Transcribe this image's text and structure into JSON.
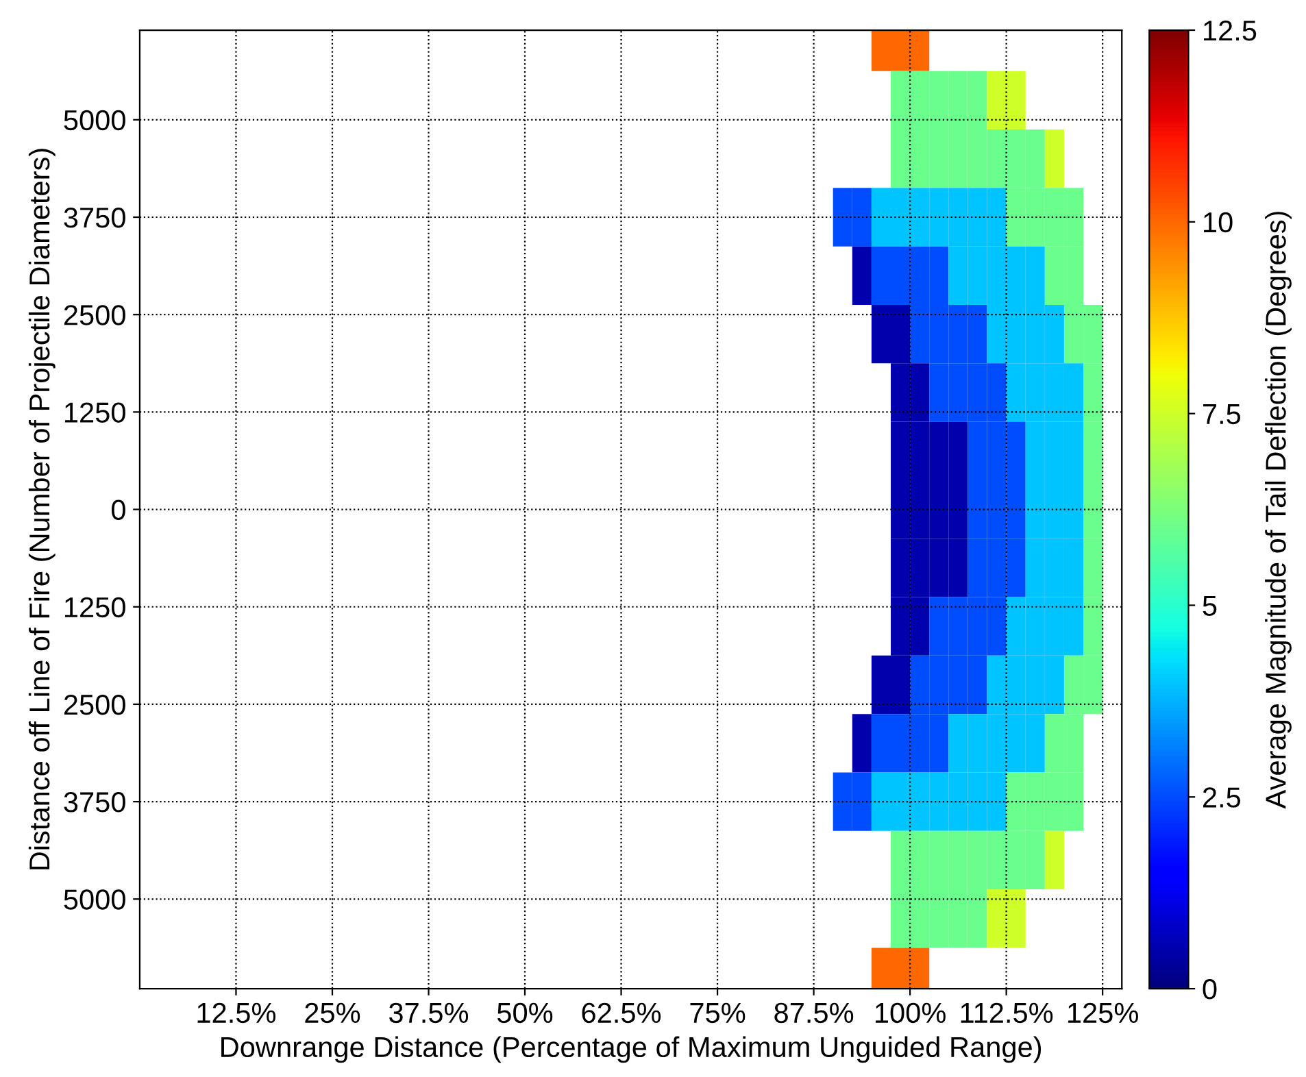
{
  "chart_data": {
    "type": "heatmap",
    "xlabel": "Downrange Distance (Percentage of Maximum Unguided Range)",
    "ylabel": "Distance off Line of Fire (Number of Projectile Diameters)",
    "clabel": "Average Magnitude of Tail Deflection (Degrees)",
    "x": [
      88.75,
      91.25,
      93.75,
      96.25,
      98.75,
      101.25,
      103.75,
      106.25,
      108.75,
      111.25,
      113.75,
      116.25,
      118.75,
      121.25,
      123.75,
      126.25
    ],
    "y": [
      -6000,
      -5250,
      -4500,
      -3750,
      -3000,
      -2250,
      -1500,
      -750,
      0,
      750,
      1500,
      2250,
      3000,
      3750,
      4500,
      5250,
      6000
    ],
    "cells": [
      [
        null,
        null,
        null,
        10,
        10,
        10,
        null,
        null,
        null,
        null,
        null,
        null,
        null,
        null,
        null,
        null
      ],
      [
        null,
        null,
        null,
        null,
        6,
        6,
        6,
        6,
        6,
        7.5,
        7.5,
        null,
        null,
        null,
        null,
        null
      ],
      [
        null,
        null,
        null,
        null,
        6,
        6,
        6,
        6,
        6,
        6,
        6,
        6,
        7.5,
        null,
        null,
        null
      ],
      [
        null,
        2.5,
        2.5,
        4,
        4,
        4,
        4,
        4,
        4,
        4,
        6,
        6,
        6,
        6,
        null,
        null
      ],
      [
        null,
        null,
        0.5,
        2.5,
        2.5,
        2.5,
        2.5,
        4,
        4,
        4,
        4,
        4,
        6,
        6,
        null,
        null
      ],
      [
        null,
        null,
        null,
        0.5,
        0.5,
        2.5,
        2.5,
        2.5,
        2.5,
        4,
        4,
        4,
        4,
        6,
        6,
        null
      ],
      [
        null,
        null,
        null,
        null,
        0.5,
        0.5,
        2.5,
        2.5,
        2.5,
        2.5,
        4,
        4,
        4,
        4,
        6,
        null
      ],
      [
        null,
        null,
        null,
        null,
        0.5,
        0.5,
        0.5,
        0.5,
        2.5,
        2.5,
        2.5,
        4,
        4,
        4,
        6,
        null
      ],
      [
        null,
        null,
        null,
        null,
        0.5,
        0.5,
        0.5,
        0.5,
        2.5,
        2.5,
        2.5,
        4,
        4,
        4,
        6,
        null
      ],
      [
        null,
        null,
        null,
        null,
        0.5,
        0.5,
        0.5,
        0.5,
        2.5,
        2.5,
        2.5,
        4,
        4,
        4,
        6,
        null
      ],
      [
        null,
        null,
        null,
        null,
        0.5,
        0.5,
        2.5,
        2.5,
        2.5,
        2.5,
        4,
        4,
        4,
        4,
        6,
        null
      ],
      [
        null,
        null,
        null,
        0.5,
        0.5,
        2.5,
        2.5,
        2.5,
        2.5,
        4,
        4,
        4,
        4,
        6,
        6,
        null
      ],
      [
        null,
        null,
        0.5,
        2.5,
        2.5,
        2.5,
        2.5,
        4,
        4,
        4,
        4,
        4,
        6,
        6,
        null,
        null
      ],
      [
        null,
        2.5,
        2.5,
        4,
        4,
        4,
        4,
        4,
        4,
        4,
        6,
        6,
        6,
        6,
        null,
        null
      ],
      [
        null,
        null,
        null,
        null,
        6,
        6,
        6,
        6,
        6,
        6,
        6,
        6,
        7.5,
        null,
        null,
        null
      ],
      [
        null,
        null,
        null,
        null,
        6,
        6,
        6,
        6,
        6,
        7.5,
        7.5,
        null,
        null,
        null,
        null,
        null
      ],
      [
        null,
        null,
        null,
        10,
        10,
        10,
        null,
        null,
        null,
        null,
        null,
        null,
        null,
        null,
        null,
        null
      ]
    ],
    "xlim": [
      0,
      127.5
    ],
    "xticks": [
      {
        "value": 12.5,
        "label": "12.5%"
      },
      {
        "value": 25,
        "label": "25%"
      },
      {
        "value": 37.5,
        "label": "37.5%"
      },
      {
        "value": 50,
        "label": "50%"
      },
      {
        "value": 62.5,
        "label": "62.5%"
      },
      {
        "value": 75,
        "label": "75%"
      },
      {
        "value": 87.5,
        "label": "87.5%"
      },
      {
        "value": 100,
        "label": "100%"
      },
      {
        "value": 112.5,
        "label": "112.5%"
      },
      {
        "value": 125,
        "label": "125%"
      }
    ],
    "ylim": [
      6150,
      -6150
    ],
    "yticks": [
      {
        "value": -5000,
        "label": "5000"
      },
      {
        "value": -3750,
        "label": "3750"
      },
      {
        "value": -2500,
        "label": "2500"
      },
      {
        "value": -1250,
        "label": "1250"
      },
      0,
      1250,
      2500,
      3750,
      5000
    ],
    "clim": [
      0,
      12.5
    ],
    "cticks": [
      0,
      2.5,
      5,
      7.5,
      10,
      12.5
    ],
    "grid": true
  }
}
